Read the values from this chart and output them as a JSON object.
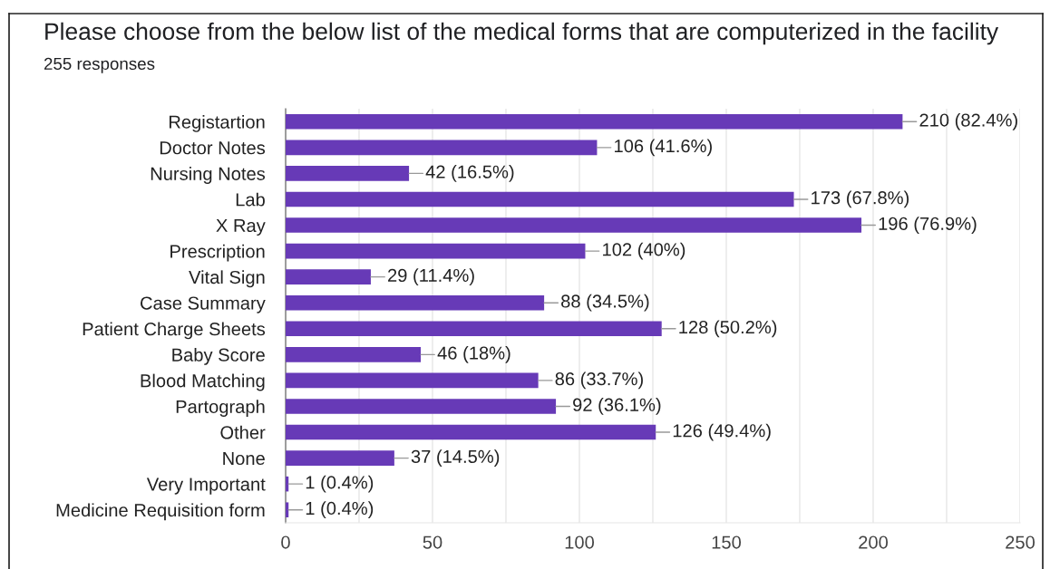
{
  "chart_data": {
    "type": "bar",
    "orientation": "horizontal",
    "title": "Please choose from the below list of the medical forms that are computerized in the facility",
    "subtitle": "255 responses",
    "categories": [
      "Registartion",
      "Doctor Notes",
      "Nursing Notes",
      "Lab",
      "X Ray",
      "Prescription",
      "Vital Sign",
      "Case Summary",
      "Patient Charge Sheets",
      "Baby Score",
      "Blood Matching",
      "Partograph",
      "Other",
      "None",
      "Very Important",
      "Medicine Requisition form"
    ],
    "values": [
      210,
      106,
      42,
      173,
      196,
      102,
      29,
      88,
      128,
      46,
      86,
      92,
      126,
      37,
      1,
      1
    ],
    "value_labels": [
      "210 (82.4%)",
      "106 (41.6%)",
      "42 (16.5%)",
      "173 (67.8%)",
      "196 (76.9%)",
      "102 (40%)",
      "29 (11.4%)",
      "88 (34.5%)",
      "128 (50.2%)",
      "46 (18%)",
      "86 (33.7%)",
      "92 (36.1%)",
      "126 (49.4%)",
      "37 (14.5%)",
      "1 (0.4%)",
      "1 (0.4%)"
    ],
    "color": "#673ab7",
    "xlim": [
      0,
      250
    ],
    "xticks": [
      0,
      {
        "value": 25,
        "label": null
      },
      50,
      {
        "value": 75,
        "label": null
      },
      100,
      {
        "value": 125,
        "label": null
      },
      150,
      {
        "value": 175,
        "label": null
      },
      200,
      {
        "value": 225,
        "label": null
      },
      250
    ],
    "grid": "x"
  }
}
